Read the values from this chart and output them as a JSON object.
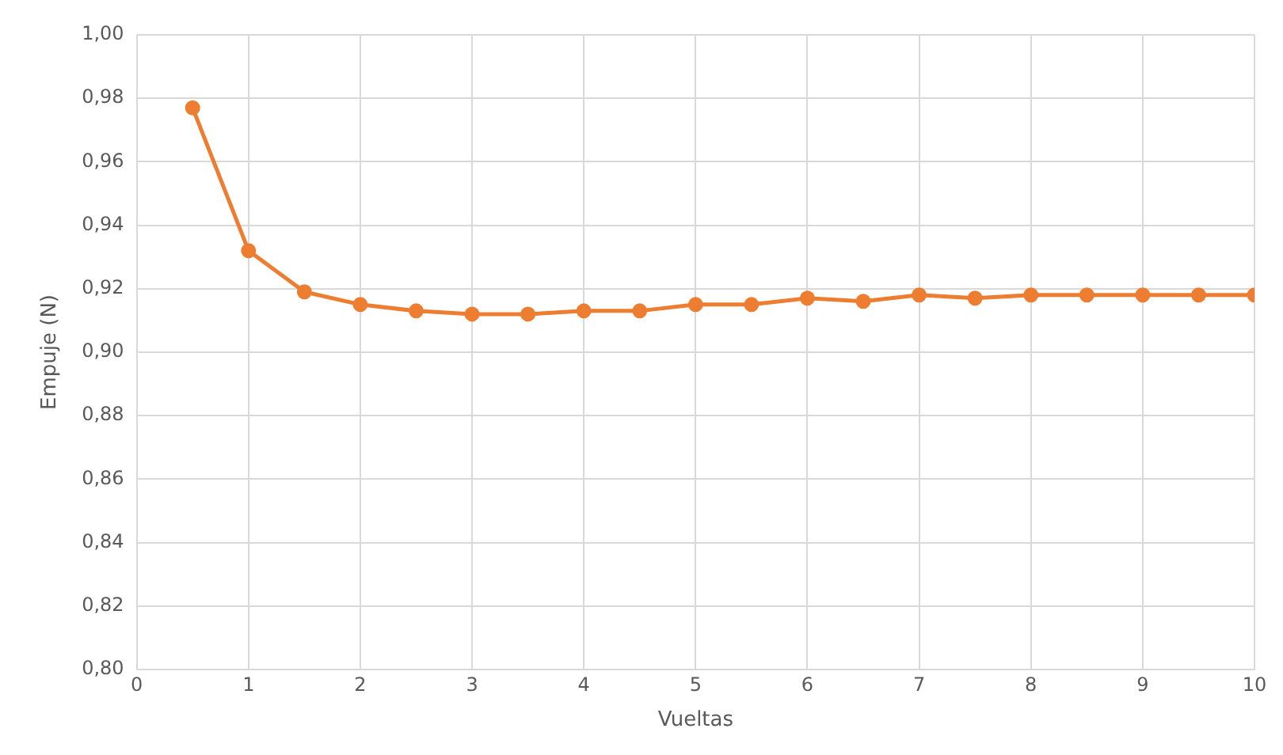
{
  "chart_data": {
    "type": "line",
    "xlabel": "Vueltas",
    "ylabel": "Empuje (N)",
    "x": [
      0.5,
      1,
      1.5,
      2,
      2.5,
      3,
      3.5,
      4,
      4.5,
      5,
      5.5,
      6,
      6.5,
      7,
      7.5,
      8,
      8.5,
      9,
      9.5,
      10
    ],
    "series": [
      {
        "color": "#ed7d31",
        "values": [
          0.977,
          0.932,
          0.919,
          0.915,
          0.913,
          0.912,
          0.912,
          0.913,
          0.913,
          0.915,
          0.915,
          0.917,
          0.916,
          0.918,
          0.917,
          0.918,
          0.918,
          0.918,
          0.918,
          0.918
        ]
      }
    ],
    "xlim": [
      0,
      10
    ],
    "xticks": [
      0,
      1,
      2,
      3,
      4,
      5,
      6,
      7,
      8,
      9,
      10
    ],
    "ylim": [
      0.8,
      1.0
    ],
    "yticks": [
      {
        "value": 0.8,
        "label": "0,80"
      },
      {
        "value": 0.82,
        "label": "0,82"
      },
      {
        "value": 0.84,
        "label": "0,84"
      },
      {
        "value": 0.86,
        "label": "0,86"
      },
      {
        "value": 0.88,
        "label": "0,88"
      },
      {
        "value": 0.9,
        "label": "0,90"
      },
      {
        "value": 0.92,
        "label": "0,92"
      },
      {
        "value": 0.94,
        "label": "0,94"
      },
      {
        "value": 0.96,
        "label": "0,96"
      },
      {
        "value": 0.98,
        "label": "0,98"
      },
      {
        "value": 1.0,
        "label": "1,00"
      }
    ],
    "grid": true,
    "legend": false,
    "marker": "circle",
    "line_style": "solid"
  }
}
